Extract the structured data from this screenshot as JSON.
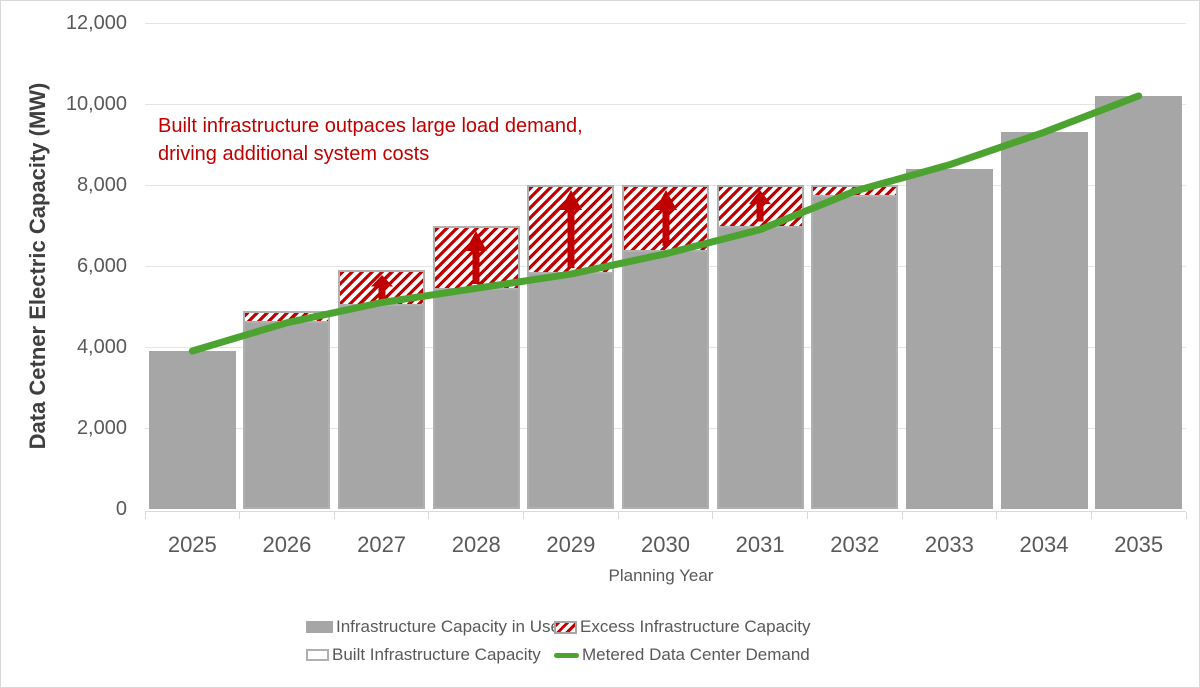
{
  "chart_data": {
    "type": "bar-line-combo",
    "categories": [
      "2025",
      "2026",
      "2027",
      "2028",
      "2029",
      "2030",
      "2031",
      "2032",
      "2033",
      "2034",
      "2035"
    ],
    "series": [
      {
        "name": "Infrastructure Capacity in Use",
        "type": "bar",
        "role": "in_use",
        "color": "#a6a6a6",
        "values": [
          3900,
          4600,
          5000,
          5400,
          5800,
          6350,
          6950,
          7700,
          8400,
          9300,
          10200
        ]
      },
      {
        "name": "Built Infrastructure Capacity",
        "type": "bar",
        "role": "built_total",
        "fill": "#ffffff",
        "border_color": "#b0b0b0",
        "values": [
          3900,
          4900,
          5900,
          7000,
          8000,
          8000,
          8000,
          8000,
          8400,
          9300,
          10200
        ]
      },
      {
        "name": "Excess Infrastructure Capacity",
        "type": "bar",
        "role": "excess",
        "hatch_color": "#c00000",
        "values": [
          0,
          300,
          900,
          1600,
          2200,
          1650,
          1050,
          300,
          0,
          0,
          0
        ]
      },
      {
        "name": "Metered Data Center Demand",
        "type": "line",
        "role": "demand",
        "color": "#4ca32f",
        "values": [
          3900,
          4600,
          5100,
          5450,
          5800,
          6300,
          6900,
          7850,
          8500,
          9300,
          10200
        ]
      }
    ],
    "xlabel": "Planning Year",
    "ylabel": "Data Cetner Electric Capacity (MW)",
    "ylim": [
      0,
      12000
    ],
    "ytick_step": 2000,
    "grid": "horizontal",
    "legend_position": "bottom",
    "arrow_years": [
      "2027",
      "2028",
      "2029",
      "2030",
      "2031"
    ]
  },
  "annotation": {
    "line1": "Built infrastructure outpaces large load demand,",
    "line2": "driving additional system costs",
    "color": "#c00000"
  },
  "legend": {
    "items": [
      {
        "label": "Infrastructure Capacity in Use",
        "swatch": "gray-fill"
      },
      {
        "label": "Excess Infrastructure Capacity",
        "swatch": "red-hatch"
      },
      {
        "label": "Built Infrastructure Capacity",
        "swatch": "outline"
      },
      {
        "label": "Metered Data Center Demand",
        "swatch": "green-line"
      }
    ]
  },
  "colors": {
    "bar_gray": "#a6a6a6",
    "bar_outline": "#b0b0b0",
    "excess_red": "#c00000",
    "demand_green": "#4ca32f",
    "gridline": "#e4e4e4",
    "axis": "#d9d9d9",
    "tick_text": "#595959",
    "axis_title": "#3f3f3f"
  }
}
